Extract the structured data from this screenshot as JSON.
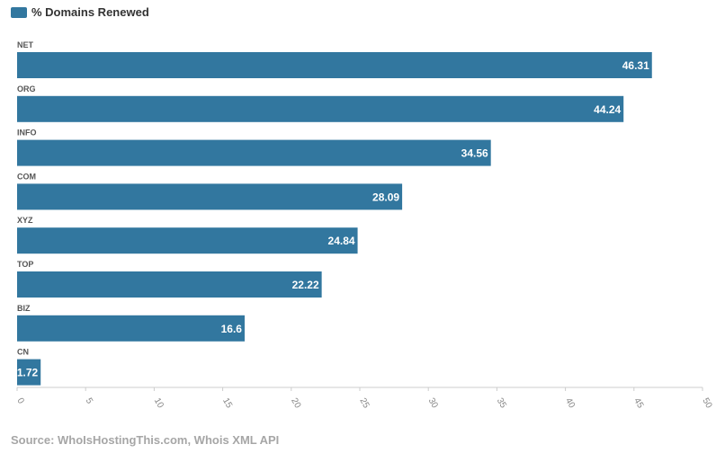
{
  "legend": {
    "label": "% Domains Renewed"
  },
  "source": "Source: WhoIsHostingThis.com, Whois XML API",
  "colors": {
    "bar": "#32779f",
    "bar_label": "#ffffff",
    "category_label": "#555555",
    "tick_label": "#888888",
    "axis": "#cccccc"
  },
  "chart_data": {
    "type": "bar",
    "orientation": "horizontal",
    "categories": [
      "NET",
      "ORG",
      "INFO",
      "COM",
      "XYZ",
      "TOP",
      "BIZ",
      "CN"
    ],
    "series": [
      {
        "name": "% Domains Renewed",
        "values": [
          46.31,
          44.24,
          34.56,
          28.09,
          24.84,
          22.22,
          16.6,
          1.72
        ]
      }
    ],
    "value_labels": [
      "46.31",
      "44.24",
      "34.56",
      "28.09",
      "24.84",
      "22.22",
      "16.6",
      "1.72"
    ],
    "xlim": [
      0,
      50
    ],
    "xticks": [
      0,
      5,
      10,
      15,
      20,
      25,
      30,
      35,
      40,
      45,
      50
    ],
    "grid": false,
    "legend_position": "top-left"
  }
}
